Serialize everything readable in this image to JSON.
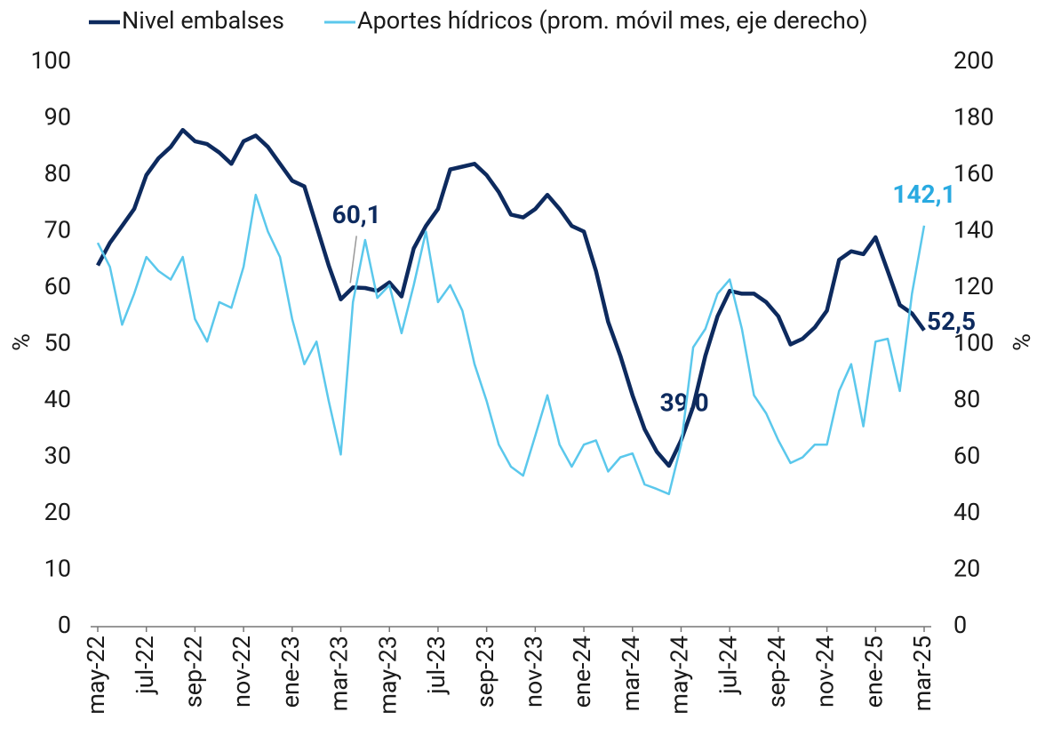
{
  "chart_data": {
    "type": "line",
    "y_label": "%",
    "y2_label": "%",
    "categories": [
      "may-22",
      null,
      null,
      null,
      "jul-22",
      null,
      null,
      null,
      "sep-22",
      null,
      null,
      null,
      "nov-22",
      null,
      null,
      null,
      "ene-23",
      null,
      null,
      null,
      "mar-23",
      null,
      null,
      null,
      "may-23",
      null,
      null,
      null,
      "jul-23",
      null,
      null,
      null,
      "sep-23",
      null,
      null,
      null,
      "nov-23",
      null,
      null,
      null,
      "ene-24",
      null,
      null,
      null,
      "mar-24",
      null,
      null,
      null,
      "may-24",
      null,
      null,
      null,
      "jul-24",
      null,
      null,
      null,
      "sep-24",
      null,
      null,
      null,
      "nov-24",
      null,
      null,
      null,
      "ene-25",
      null,
      null,
      null,
      "mar-25"
    ],
    "series": [
      {
        "name": "Nivel embalses",
        "color": "#0d2a5e",
        "values": [
          64,
          68,
          71,
          74,
          80,
          83,
          85,
          88,
          86,
          85.5,
          84,
          82,
          86,
          87,
          85,
          82,
          79,
          78,
          71,
          64,
          58,
          60.1,
          60,
          59.5,
          61,
          58.5,
          67,
          71,
          74,
          81,
          81.5,
          82,
          80,
          77,
          73,
          72.5,
          74,
          76.5,
          74,
          71,
          70,
          63,
          54,
          48,
          41,
          35,
          31,
          28.5,
          33,
          39.0,
          48,
          55,
          59.5,
          59,
          59,
          57.5,
          55,
          50,
          51,
          53,
          56,
          65,
          66.5,
          66,
          69,
          63,
          57,
          55.5,
          52.5
        ],
        "value_labels": [
          null,
          null,
          null,
          null,
          null,
          null,
          null,
          null,
          null,
          null,
          null,
          null,
          null,
          null,
          null,
          null,
          null,
          null,
          null,
          null,
          null,
          "60,1",
          null,
          null,
          null,
          null,
          null,
          null,
          null,
          null,
          null,
          null,
          null,
          null,
          null,
          null,
          null,
          null,
          null,
          null,
          null,
          null,
          null,
          null,
          null,
          null,
          null,
          null,
          null,
          "39,0",
          null,
          null,
          null,
          null,
          null,
          null,
          null,
          null,
          null,
          null,
          null,
          null,
          null,
          null,
          null,
          null,
          null,
          null,
          "52,5"
        ]
      },
      {
        "name": "Aportes hídricos (prom. móvil mes, eje derecho)",
        "color": "#5bc8ec",
        "axis": "y2",
        "label_color": "#29aae1",
        "values": [
          136,
          127.5,
          107,
          118,
          131,
          126,
          123,
          131,
          109,
          101,
          115,
          113,
          127.5,
          153,
          140,
          131,
          109,
          93,
          101,
          80,
          61,
          115,
          137,
          116.5,
          121,
          104,
          121,
          140,
          115,
          121,
          112,
          93,
          80,
          64.5,
          56.7,
          53.5,
          67.7,
          82,
          64.5,
          56.7,
          64.5,
          66,
          55,
          60,
          61.4,
          50.4,
          48.8,
          47,
          64.5,
          99,
          105.5,
          118,
          123,
          105.5,
          82,
          75.6,
          66,
          58,
          60,
          64.5,
          64.5,
          83.5,
          93,
          71,
          101,
          102,
          83.5,
          118,
          142.1
        ],
        "value_labels": [
          null,
          null,
          null,
          null,
          null,
          null,
          null,
          null,
          null,
          null,
          null,
          null,
          null,
          null,
          null,
          null,
          null,
          null,
          null,
          null,
          null,
          null,
          null,
          null,
          null,
          null,
          null,
          null,
          null,
          null,
          null,
          null,
          null,
          null,
          null,
          null,
          null,
          null,
          null,
          null,
          null,
          null,
          null,
          null,
          null,
          null,
          null,
          null,
          null,
          null,
          null,
          null,
          null,
          null,
          null,
          null,
          null,
          null,
          null,
          null,
          null,
          null,
          null,
          null,
          null,
          null,
          null,
          null,
          "142,1"
        ]
      }
    ],
    "ylim": [
      0,
      100
    ],
    "yticks": [
      0,
      10,
      20,
      30,
      40,
      50,
      60,
      70,
      80,
      90,
      100
    ],
    "y2lim": [
      0,
      200
    ],
    "y2ticks": [
      0,
      20,
      40,
      60,
      80,
      100,
      120,
      140,
      160,
      180,
      200
    ]
  }
}
